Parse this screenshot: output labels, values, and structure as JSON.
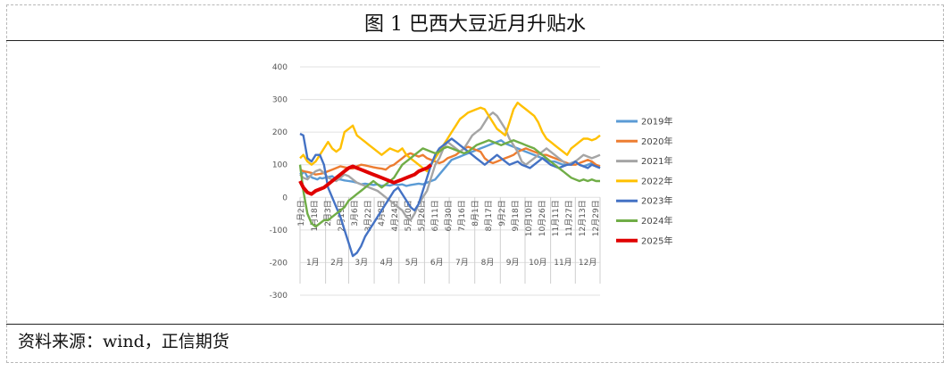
{
  "title": "图 1 巴西大豆近月升贴水",
  "source": "资料来源：wind，正信期货",
  "chart_data": {
    "type": "line",
    "ylim": [
      -300,
      400
    ],
    "yticks": [
      -300,
      -200,
      -100,
      0,
      100,
      200,
      300,
      400
    ],
    "x_day_labels": [
      "1月2日",
      "1月18日",
      "2月3日",
      "2月19日",
      "3月6日",
      "3月22日",
      "4月8日",
      "4月24日",
      "5月10日",
      "5月26日",
      "6月11日",
      "6月30日",
      "7月16日",
      "8月1日",
      "8月17日",
      "9月2日",
      "9月18日",
      "10月10日",
      "10月26日",
      "11月11日",
      "11月27日",
      "12月13日",
      "12月29日"
    ],
    "x_month_labels": [
      "1月",
      "2月",
      "3月",
      "4月",
      "5月",
      "6月",
      "7月",
      "8月",
      "9月",
      "10月",
      "11月",
      "12月"
    ],
    "grid": "horizontal",
    "legend_position": "right",
    "series": [
      {
        "name": "2019年",
        "color": "#5b9bd5",
        "x": [
          1,
          3,
          6,
          8,
          10,
          13,
          16,
          19,
          22,
          25,
          28,
          31,
          35,
          40,
          45,
          50,
          55,
          60,
          65,
          70,
          75,
          80,
          85,
          90,
          95,
          100,
          105,
          110,
          115,
          120,
          125,
          130,
          135,
          140,
          145,
          150,
          155,
          160,
          165,
          170,
          175,
          180,
          185,
          190,
          195,
          200,
          205,
          210,
          215,
          220,
          225,
          230,
          235,
          240,
          245,
          250,
          255,
          260,
          265,
          270,
          275,
          280,
          285,
          290,
          295,
          300,
          305,
          310,
          315,
          320,
          325,
          330,
          335,
          340,
          345,
          350,
          355,
          360,
          365
        ],
        "y": [
          75,
          70,
          80,
          72,
          62,
          65,
          60,
          58,
          55,
          60,
          58,
          60,
          62,
          65,
          55,
          55,
          52,
          50,
          48,
          45,
          40,
          42,
          40,
          38,
          40,
          35,
          38,
          36,
          40,
          38,
          40,
          35,
          38,
          40,
          42,
          40,
          45,
          50,
          55,
          70,
          85,
          100,
          115,
          120,
          125,
          130,
          135,
          140,
          145,
          150,
          155,
          160,
          165,
          170,
          175,
          165,
          160,
          155,
          150,
          145,
          140,
          135,
          130,
          125,
          120,
          115,
          110,
          110,
          105,
          100,
          100,
          105,
          110,
          100,
          95,
          100,
          105,
          95,
          90
        ]
      },
      {
        "name": "2020年",
        "color": "#ed7d31",
        "x": [
          1,
          5,
          10,
          15,
          20,
          25,
          30,
          35,
          40,
          45,
          50,
          55,
          60,
          65,
          70,
          75,
          80,
          85,
          90,
          95,
          100,
          105,
          110,
          115,
          120,
          125,
          130,
          135,
          140,
          145,
          150,
          155,
          160,
          165,
          170,
          175,
          180,
          185,
          190,
          195,
          200,
          205,
          210,
          215,
          220,
          225,
          230,
          235,
          240,
          245,
          250,
          255,
          260,
          265,
          270,
          275,
          280,
          285,
          290,
          295,
          300,
          305,
          310,
          315,
          320,
          325,
          330,
          335,
          340,
          345,
          350,
          355,
          360,
          365
        ],
        "y": [
          85,
          80,
          78,
          75,
          70,
          72,
          75,
          80,
          85,
          90,
          95,
          92,
          90,
          88,
          95,
          100,
          98,
          95,
          92,
          90,
          88,
          85,
          95,
          100,
          110,
          120,
          130,
          135,
          130,
          125,
          130,
          120,
          115,
          110,
          105,
          110,
          120,
          125,
          130,
          140,
          150,
          155,
          150,
          145,
          140,
          120,
          110,
          105,
          110,
          115,
          120,
          125,
          130,
          140,
          145,
          150,
          145,
          140,
          135,
          130,
          130,
          125,
          120,
          115,
          110,
          105,
          100,
          100,
          105,
          110,
          115,
          110,
          100,
          95
        ]
      },
      {
        "name": "2021年",
        "color": "#a5a5a5",
        "x": [
          1,
          5,
          10,
          15,
          20,
          25,
          30,
          35,
          40,
          45,
          50,
          55,
          60,
          65,
          70,
          75,
          80,
          85,
          90,
          95,
          100,
          105,
          110,
          115,
          120,
          125,
          130,
          135,
          140,
          145,
          150,
          155,
          160,
          165,
          170,
          175,
          180,
          185,
          190,
          195,
          200,
          205,
          210,
          215,
          220,
          225,
          230,
          235,
          240,
          245,
          250,
          255,
          260,
          265,
          270,
          275,
          280,
          285,
          290,
          295,
          300,
          305,
          310,
          315,
          320,
          325,
          330,
          335,
          340,
          345,
          350,
          355,
          360,
          365
        ],
        "y": [
          70,
          60,
          55,
          70,
          80,
          85,
          75,
          60,
          55,
          50,
          60,
          70,
          65,
          55,
          45,
          40,
          35,
          30,
          25,
          20,
          10,
          0,
          -10,
          -20,
          -30,
          -40,
          -60,
          -70,
          -50,
          -20,
          0,
          20,
          60,
          100,
          120,
          150,
          170,
          160,
          150,
          140,
          150,
          170,
          190,
          200,
          210,
          230,
          250,
          260,
          250,
          230,
          210,
          180,
          160,
          140,
          110,
          100,
          110,
          120,
          130,
          140,
          150,
          140,
          130,
          120,
          110,
          100,
          105,
          110,
          120,
          130,
          125,
          120,
          125,
          130
        ]
      },
      {
        "name": "2022年",
        "color": "#ffc000",
        "x": [
          1,
          5,
          10,
          15,
          20,
          25,
          30,
          35,
          40,
          45,
          50,
          55,
          60,
          65,
          70,
          75,
          80,
          85,
          90,
          95,
          100,
          105,
          110,
          115,
          120,
          125,
          130,
          135,
          140,
          145,
          150,
          155,
          160,
          165,
          170,
          175,
          180,
          185,
          190,
          195,
          200,
          205,
          210,
          215,
          220,
          225,
          230,
          235,
          240,
          245,
          250,
          255,
          260,
          265,
          270,
          275,
          280,
          285,
          290,
          295,
          300,
          305,
          310,
          315,
          320,
          325,
          330,
          335,
          340,
          345,
          350,
          355,
          360,
          365
        ],
        "y": [
          120,
          130,
          110,
          100,
          110,
          130,
          150,
          170,
          150,
          140,
          150,
          200,
          210,
          220,
          190,
          180,
          170,
          160,
          150,
          140,
          130,
          140,
          150,
          145,
          140,
          150,
          130,
          120,
          110,
          100,
          90,
          80,
          100,
          120,
          140,
          160,
          180,
          200,
          220,
          240,
          250,
          260,
          265,
          270,
          275,
          270,
          250,
          230,
          210,
          200,
          190,
          230,
          270,
          290,
          280,
          270,
          260,
          250,
          230,
          200,
          180,
          170,
          160,
          150,
          140,
          130,
          150,
          160,
          170,
          180,
          180,
          175,
          180,
          190
        ]
      },
      {
        "name": "2023年",
        "color": "#4472c4",
        "x": [
          1,
          5,
          10,
          15,
          20,
          25,
          30,
          35,
          40,
          45,
          50,
          55,
          60,
          65,
          70,
          75,
          80,
          85,
          90,
          95,
          100,
          105,
          110,
          115,
          120,
          125,
          130,
          135,
          140,
          145,
          150,
          155,
          160,
          165,
          170,
          175,
          180,
          185,
          190,
          195,
          200,
          205,
          210,
          215,
          220,
          225,
          230,
          235,
          240,
          245,
          250,
          255,
          260,
          265,
          270,
          275,
          280,
          285,
          290,
          295,
          300,
          305,
          310,
          315,
          320,
          325,
          330,
          335,
          340,
          345,
          350,
          355,
          360,
          365
        ],
        "y": [
          195,
          190,
          120,
          110,
          130,
          130,
          100,
          30,
          0,
          -30,
          -60,
          -100,
          -140,
          -180,
          -170,
          -150,
          -120,
          -100,
          -80,
          -60,
          -40,
          -20,
          0,
          20,
          30,
          10,
          -10,
          -30,
          -40,
          -20,
          20,
          60,
          100,
          130,
          150,
          160,
          170,
          180,
          170,
          160,
          150,
          140,
          130,
          120,
          110,
          100,
          110,
          120,
          130,
          120,
          110,
          100,
          105,
          110,
          100,
          95,
          90,
          100,
          110,
          120,
          110,
          100,
          95,
          90,
          95,
          100,
          100,
          110,
          100,
          95,
          90,
          100,
          95,
          90
        ]
      },
      {
        "name": "2024年",
        "color": "#70ad47",
        "x": [
          1,
          5,
          10,
          15,
          20,
          25,
          30,
          35,
          40,
          45,
          50,
          55,
          60,
          65,
          70,
          75,
          80,
          85,
          90,
          95,
          100,
          105,
          110,
          115,
          120,
          125,
          130,
          135,
          140,
          145,
          150,
          155,
          160,
          165,
          170,
          175,
          180,
          185,
          190,
          195,
          200,
          205,
          210,
          215,
          220,
          225,
          230,
          235,
          240,
          245,
          250,
          255,
          260,
          265,
          270,
          275,
          280,
          285,
          290,
          295,
          300,
          305,
          310,
          315,
          320,
          325,
          330,
          335,
          340,
          345,
          350,
          355,
          360,
          365
        ],
        "y": [
          100,
          20,
          -50,
          -80,
          -90,
          -80,
          -70,
          -70,
          -60,
          -50,
          -40,
          -30,
          -10,
          0,
          10,
          20,
          30,
          40,
          50,
          40,
          30,
          40,
          50,
          60,
          80,
          100,
          110,
          120,
          130,
          140,
          150,
          145,
          140,
          135,
          140,
          150,
          155,
          150,
          145,
          140,
          135,
          140,
          150,
          160,
          165,
          170,
          175,
          170,
          165,
          160,
          165,
          170,
          175,
          170,
          165,
          160,
          155,
          150,
          140,
          130,
          120,
          110,
          100,
          90,
          80,
          70,
          60,
          55,
          50,
          55,
          50,
          55,
          50,
          50
        ]
      },
      {
        "name": "2025年",
        "color": "#e00000",
        "x": [
          1,
          5,
          10,
          15,
          20,
          25,
          30,
          35,
          40,
          45,
          50,
          55,
          60,
          65,
          70,
          75,
          80,
          85,
          90,
          95,
          100,
          105,
          110,
          115,
          120,
          125,
          130,
          135,
          140,
          145,
          150,
          155,
          160
        ],
        "y": [
          50,
          30,
          15,
          10,
          20,
          25,
          30,
          40,
          50,
          60,
          70,
          80,
          90,
          95,
          90,
          85,
          80,
          75,
          70,
          65,
          60,
          55,
          50,
          45,
          50,
          55,
          60,
          65,
          70,
          80,
          85,
          90,
          100
        ]
      }
    ]
  }
}
